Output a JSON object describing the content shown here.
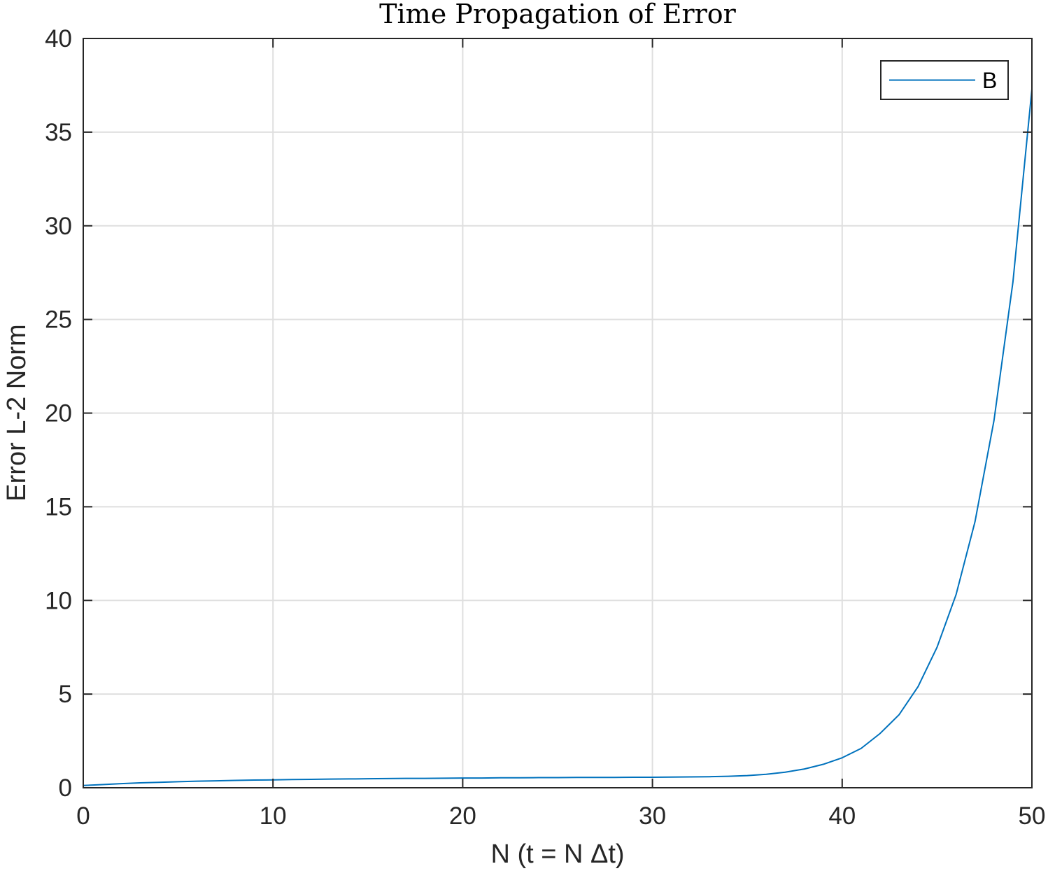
{
  "chart_data": {
    "type": "line",
    "title": "Time Propagation of Error",
    "xlabel": "N (t = N Δt)",
    "ylabel": "Error L-2 Norm",
    "xlim": [
      0,
      50
    ],
    "ylim": [
      0,
      40
    ],
    "xticks": [
      0,
      10,
      20,
      30,
      40,
      50
    ],
    "yticks": [
      0,
      5,
      10,
      15,
      20,
      25,
      30,
      35,
      40
    ],
    "xtick_labels": [
      "0",
      "10",
      "20",
      "30",
      "40",
      "50"
    ],
    "ytick_labels": [
      "0",
      "5",
      "10",
      "15",
      "20",
      "25",
      "30",
      "35",
      "40"
    ],
    "grid": true,
    "legend_position": "top-right",
    "series": [
      {
        "name": "B",
        "color": "#0072BD",
        "x": [
          0,
          1,
          2,
          3,
          4,
          5,
          6,
          7,
          8,
          9,
          10,
          11,
          12,
          13,
          14,
          15,
          16,
          17,
          18,
          19,
          20,
          21,
          22,
          23,
          24,
          25,
          26,
          27,
          28,
          29,
          30,
          31,
          32,
          33,
          34,
          35,
          36,
          37,
          38,
          39,
          40,
          41,
          42,
          43,
          44,
          45,
          46,
          47,
          48,
          49,
          50
        ],
        "y": [
          0.12,
          0.17,
          0.22,
          0.26,
          0.29,
          0.32,
          0.35,
          0.37,
          0.39,
          0.41,
          0.42,
          0.44,
          0.45,
          0.46,
          0.47,
          0.48,
          0.49,
          0.5,
          0.5,
          0.51,
          0.52,
          0.52,
          0.53,
          0.53,
          0.54,
          0.54,
          0.55,
          0.55,
          0.55,
          0.56,
          0.56,
          0.57,
          0.58,
          0.59,
          0.61,
          0.65,
          0.72,
          0.83,
          1.0,
          1.25,
          1.6,
          2.1,
          2.9,
          3.9,
          5.4,
          7.5,
          10.3,
          14.2,
          19.6,
          27.0,
          37.3
        ]
      }
    ]
  }
}
